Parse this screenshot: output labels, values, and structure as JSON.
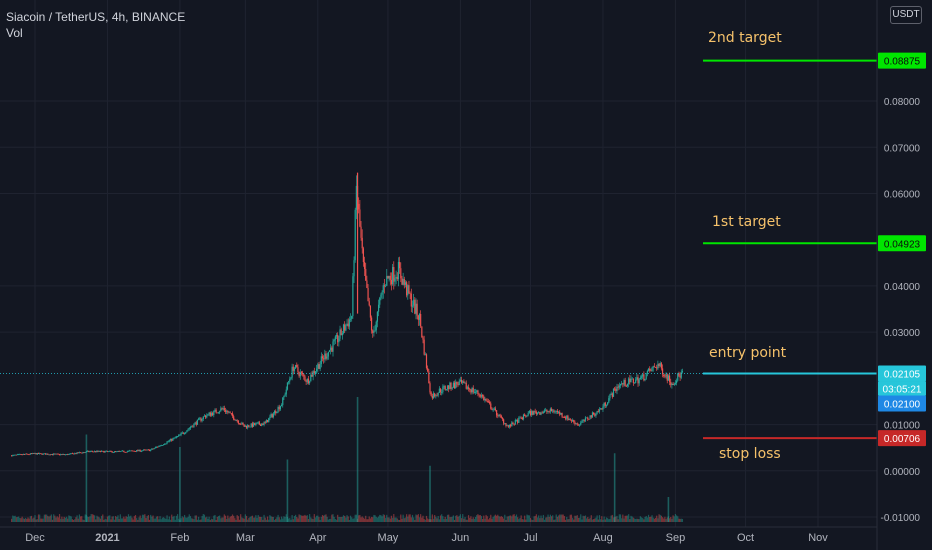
{
  "header": {
    "symbol_line": "Siacoin / TetherUS, 4h, BINANCE",
    "volume_label": "Vol"
  },
  "currency": "USDT",
  "annotations": {
    "target2": "2nd target",
    "target1": "1st target",
    "entry": "entry point",
    "stop": "stop loss"
  },
  "colors": {
    "background": "#131722",
    "bull": "#26a69a",
    "bear": "#ef5350",
    "target": "#00e600",
    "entry": "#26c6da",
    "stop": "#c62828",
    "annotation_text": "#f6c26b"
  },
  "chart_data": {
    "type": "candlestick",
    "title": "Siacoin / TetherUS, 4h, BINANCE",
    "y_axis": {
      "ticks": [
        "0.08000",
        "0.07000",
        "0.06000",
        "0.04000",
        "0.03000",
        "0.01000",
        "0.00000",
        "-0.01000"
      ],
      "ylim": [
        -0.012,
        0.1
      ]
    },
    "x_axis": {
      "ticks": [
        "Dec",
        "2021",
        "Feb",
        "Mar",
        "Apr",
        "May",
        "Jun",
        "Jul",
        "Aug",
        "Sep",
        "Oct",
        "Nov"
      ]
    },
    "price_path": [
      {
        "date": "2020-11-21",
        "price": 0.0033
      },
      {
        "date": "2020-12-01",
        "price": 0.0037
      },
      {
        "date": "2020-12-15",
        "price": 0.0035
      },
      {
        "date": "2020-12-25",
        "price": 0.0042
      },
      {
        "date": "2021-01-05",
        "price": 0.0041
      },
      {
        "date": "2021-01-20",
        "price": 0.0045
      },
      {
        "date": "2021-02-01",
        "price": 0.0075
      },
      {
        "date": "2021-02-12",
        "price": 0.0118
      },
      {
        "date": "2021-02-20",
        "price": 0.0135
      },
      {
        "date": "2021-03-01",
        "price": 0.0096
      },
      {
        "date": "2021-03-10",
        "price": 0.0103
      },
      {
        "date": "2021-03-17",
        "price": 0.0145
      },
      {
        "date": "2021-03-22",
        "price": 0.0225
      },
      {
        "date": "2021-03-28",
        "price": 0.0195
      },
      {
        "date": "2021-04-04",
        "price": 0.0245
      },
      {
        "date": "2021-04-10",
        "price": 0.0285
      },
      {
        "date": "2021-04-16",
        "price": 0.0335
      },
      {
        "date": "2021-04-18",
        "price": 0.061
      },
      {
        "date": "2021-04-21",
        "price": 0.044
      },
      {
        "date": "2021-04-25",
        "price": 0.029
      },
      {
        "date": "2021-04-30",
        "price": 0.041
      },
      {
        "date": "2021-05-06",
        "price": 0.0435
      },
      {
        "date": "2021-05-10",
        "price": 0.0385
      },
      {
        "date": "2021-05-15",
        "price": 0.033
      },
      {
        "date": "2021-05-20",
        "price": 0.016
      },
      {
        "date": "2021-05-24",
        "price": 0.0175
      },
      {
        "date": "2021-06-01",
        "price": 0.019
      },
      {
        "date": "2021-06-10",
        "price": 0.0165
      },
      {
        "date": "2021-06-22",
        "price": 0.0095
      },
      {
        "date": "2021-07-01",
        "price": 0.0125
      },
      {
        "date": "2021-07-12",
        "price": 0.013
      },
      {
        "date": "2021-07-22",
        "price": 0.01
      },
      {
        "date": "2021-08-01",
        "price": 0.0135
      },
      {
        "date": "2021-08-08",
        "price": 0.0185
      },
      {
        "date": "2021-08-18",
        "price": 0.02
      },
      {
        "date": "2021-08-25",
        "price": 0.023
      },
      {
        "date": "2021-08-31",
        "price": 0.019
      },
      {
        "date": "2021-09-04",
        "price": 0.021
      }
    ],
    "volume_spikes": [
      {
        "date": "2020-12-23",
        "relative": 0.7
      },
      {
        "date": "2021-02-01",
        "relative": 0.6
      },
      {
        "date": "2021-03-19",
        "relative": 0.5
      },
      {
        "date": "2021-04-18",
        "relative": 1.0
      },
      {
        "date": "2021-05-19",
        "relative": 0.45
      },
      {
        "date": "2021-08-06",
        "relative": 0.55
      },
      {
        "date": "2021-08-29",
        "relative": 0.2
      }
    ],
    "levels": [
      {
        "name": "2nd target",
        "value": 0.08875,
        "label": "0.08875"
      },
      {
        "name": "1st target",
        "value": 0.04923,
        "label": "0.04923"
      },
      {
        "name": "entry point",
        "value": 0.02105,
        "label": "0.02105",
        "countdown": "03:05:21",
        "ref_label": "0.02100"
      },
      {
        "name": "stop loss",
        "value": 0.00706,
        "label": "0.00706"
      }
    ]
  }
}
